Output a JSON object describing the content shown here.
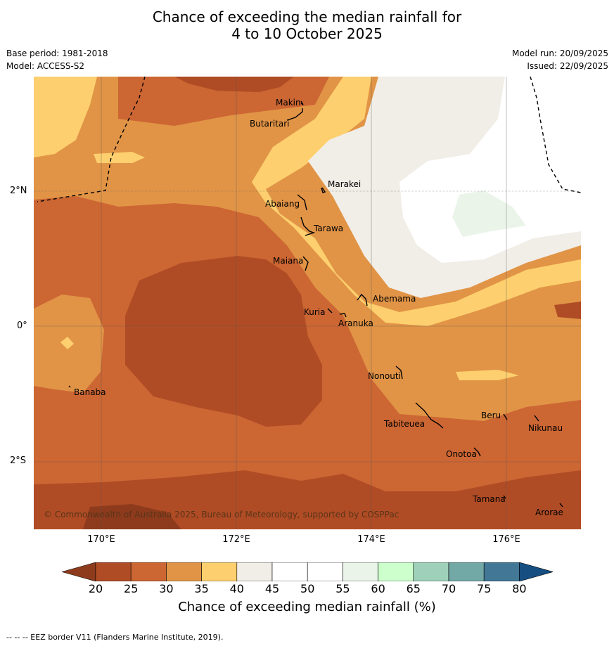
{
  "title_line1": "Chance of exceeding the median rainfall for",
  "title_line2": "4 to 10 October 2025",
  "base_period": "Base period: 1981-2018",
  "model": "Model: ACCESS-S2",
  "model_run": "Model run: 20/09/2025",
  "issued": "Issued: 22/09/2025",
  "lat_labels": [
    "2°N",
    "0°",
    "2°S"
  ],
  "lon_labels": [
    "170°E",
    "172°E",
    "174°E",
    "176°E"
  ],
  "places": [
    "Makin",
    "Butaritari",
    "Marakei",
    "Abaiang",
    "Tarawa",
    "Maiana",
    "Abemama",
    "Kuria",
    "Aranuka",
    "Banaba",
    "Nonouti",
    "Tabiteuea",
    "Beru",
    "Nikunau",
    "Onotoa",
    "Tamana",
    "Arorae"
  ],
  "copyright": "© Commonwealth of Australia 2025, Bureau of Meteorology, supported by COSPPac",
  "colorbar_ticks": [
    "20",
    "25",
    "30",
    "35",
    "40",
    "45",
    "50",
    "55",
    "60",
    "65",
    "70",
    "75",
    "80"
  ],
  "colorbar_colors": [
    "#8e3b1d",
    "#b04c25",
    "#cc6633",
    "#e19446",
    "#fdcf6e",
    "#f1ede7",
    "#ffffff",
    "#ffffff",
    "#eaf4e9",
    "#ccffcc",
    "#9fd1ba",
    "#72a8a6",
    "#427896",
    "#164e82"
  ],
  "colorbar_label": "Chance of exceeding median rainfall (%)",
  "footer_note": "--  --  -- EEZ border V11 (Flanders Marine Institute, 2019)."
}
